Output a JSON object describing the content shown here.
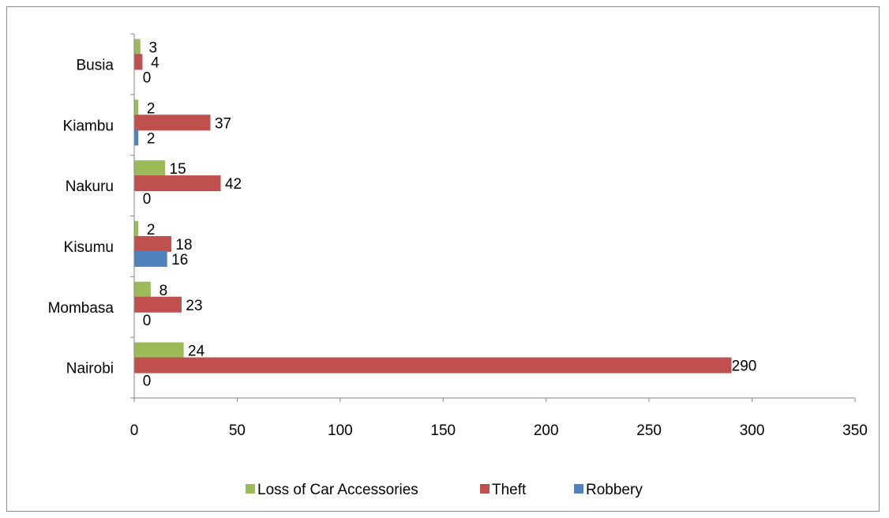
{
  "chart_data": {
    "type": "bar",
    "orientation": "horizontal",
    "categories": [
      "Nairobi",
      "Mombasa",
      "Kisumu",
      "Nakuru",
      "Kiambu",
      "Busia"
    ],
    "series": [
      {
        "name": "Loss of Car Accessories",
        "color": "#9BBB59",
        "values": [
          24,
          8,
          2,
          15,
          2,
          3
        ]
      },
      {
        "name": "Theft",
        "color": "#C0504D",
        "values": [
          290,
          23,
          18,
          42,
          37,
          4
        ]
      },
      {
        "name": "Robbery",
        "color": "#4F81BD",
        "values": [
          0,
          0,
          16,
          0,
          2,
          0
        ]
      }
    ],
    "xlim": [
      0,
      350
    ],
    "x_ticks": [
      "0",
      "50",
      "100",
      "150",
      "200",
      "250",
      "300",
      "350"
    ],
    "data_labels": true,
    "grid": false,
    "legend_position": "bottom"
  }
}
